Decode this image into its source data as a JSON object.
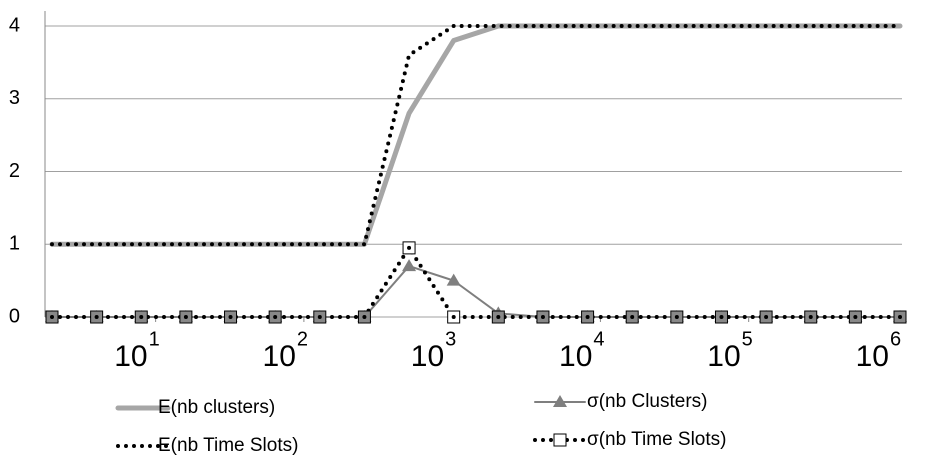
{
  "chart_data": {
    "type": "line",
    "log_x": true,
    "grid": true,
    "x": [
      2,
      4,
      8,
      16,
      32,
      64,
      128,
      256,
      512,
      1024,
      2048,
      4096,
      8192,
      16384,
      32768,
      65536,
      131072,
      262144,
      524288,
      1048576
    ],
    "xlim": [
      2,
      1048576
    ],
    "xticks": [
      {
        "value": 10,
        "label": "10",
        "exponent": "1"
      },
      {
        "value": 100,
        "label": "10",
        "exponent": "2"
      },
      {
        "value": 1000,
        "label": "10",
        "exponent": "3"
      },
      {
        "value": 10000,
        "label": "10",
        "exponent": "4"
      },
      {
        "value": 100000,
        "label": "10",
        "exponent": "5"
      },
      {
        "value": 1000000,
        "label": "10",
        "exponent": "6"
      }
    ],
    "ylim": [
      0,
      4
    ],
    "yticks": [
      0,
      1,
      2,
      3,
      4
    ],
    "series": [
      {
        "name": "E(nb clusters)",
        "color": "#a6a6a6",
        "style": "thick",
        "values": [
          1,
          1,
          1,
          1,
          1,
          1,
          1,
          1,
          2.8,
          3.8,
          4,
          4,
          4,
          4,
          4,
          4,
          4,
          4,
          4,
          4
        ]
      },
      {
        "name": "E(nb Time Slots)",
        "color": "#000000",
        "style": "dotted",
        "values": [
          1,
          1,
          1,
          1,
          1,
          1,
          1,
          1,
          3.6,
          4,
          4,
          4,
          4,
          4,
          4,
          4,
          4,
          4,
          4,
          4
        ]
      },
      {
        "name": "σ(nb Clusters)",
        "color": "#7f7f7f",
        "style": "triangle",
        "values": [
          0,
          0,
          0,
          0,
          0,
          0,
          0,
          0,
          0.7,
          0.5,
          0.05,
          0,
          0,
          0,
          0,
          0,
          0,
          0,
          0,
          0
        ]
      },
      {
        "name": "σ(nb Time Slots)",
        "color": "#000000",
        "style": "dotted-square",
        "values": [
          0,
          0,
          0,
          0,
          0,
          0,
          0,
          0,
          0.95,
          0,
          0,
          0,
          0,
          0,
          0,
          0,
          0,
          0,
          0,
          0
        ]
      }
    ]
  }
}
